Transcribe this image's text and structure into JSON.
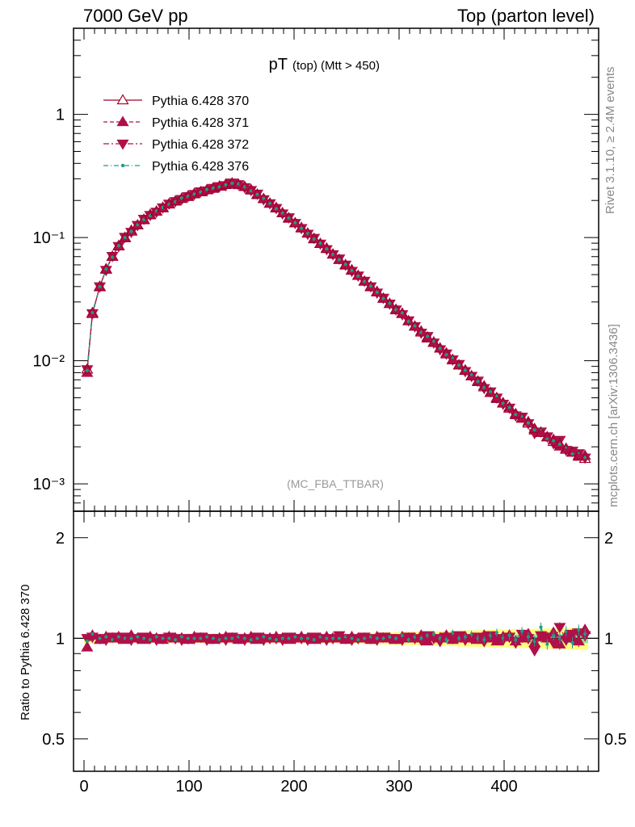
{
  "header": {
    "left": "7000 GeV pp",
    "right": "Top (parton level)"
  },
  "plot_title_main": "pT",
  "plot_title_sub": "(top) (Mtt > 450)",
  "watermark": "(MC_FBA_TTBAR)",
  "side_text_top": "Rivet 3.1.10, ≥ 2.4M events",
  "side_text_bottom": "mcplots.cern.ch [arXiv:1306.3436]",
  "ratio_ylabel": "Ratio to Pythia 6.428 370",
  "colors": {
    "series370": "#a00028",
    "series371": "#b0104a",
    "series372": "#b0104a",
    "series376": "#1a9e8a",
    "band_yellow": "#ffff80",
    "band_green": "#90e890"
  },
  "chart_data": [
    {
      "type": "line",
      "panel": "main",
      "yscale": "log",
      "xlim": [
        -10,
        490
      ],
      "ylim": [
        0.0006,
        5
      ],
      "y_ticks": [
        {
          "value": 1,
          "label": "1"
        },
        {
          "value": 0.1,
          "label": "10⁻¹"
        },
        {
          "value": 0.01,
          "label": "10⁻²"
        },
        {
          "value": 0.001,
          "label": "10⁻³"
        }
      ],
      "x_ticks": [
        0,
        100,
        200,
        300,
        400
      ],
      "x_tick_labels": [
        "0",
        "100",
        "200",
        "300",
        "400"
      ],
      "legend_position": "top-left",
      "series": [
        {
          "name": "Pythia 6.428 370",
          "marker": "open-triangle-up",
          "line": "solid",
          "color": "#a00028"
        },
        {
          "name": "Pythia 6.428 371",
          "marker": "filled-triangle-up",
          "line": "dashed",
          "color": "#b0104a"
        },
        {
          "name": "Pythia 6.428 372",
          "marker": "filled-triangle-down",
          "line": "dash-dot",
          "color": "#b0104a"
        },
        {
          "name": "Pythia 6.428 376",
          "marker": "dot",
          "line": "dash-dot",
          "color": "#1a9e8a"
        }
      ],
      "x": [
        3,
        8,
        15,
        21,
        27,
        33,
        39,
        45,
        51,
        57,
        63,
        69,
        75,
        81,
        87,
        93,
        99,
        105,
        111,
        117,
        123,
        129,
        135,
        141,
        147,
        153,
        159,
        165,
        171,
        177,
        183,
        189,
        195,
        201,
        207,
        213,
        219,
        225,
        231,
        237,
        243,
        249,
        255,
        261,
        267,
        273,
        279,
        285,
        291,
        297,
        303,
        309,
        315,
        321,
        327,
        333,
        339,
        345,
        351,
        357,
        363,
        369,
        375,
        381,
        387,
        393,
        399,
        405,
        411,
        417,
        423,
        429,
        435,
        441,
        447,
        453,
        459,
        465,
        471,
        477
      ],
      "y": [
        0.0085,
        0.024,
        0.04,
        0.055,
        0.07,
        0.085,
        0.1,
        0.112,
        0.126,
        0.14,
        0.152,
        0.163,
        0.175,
        0.186,
        0.197,
        0.207,
        0.216,
        0.225,
        0.234,
        0.243,
        0.252,
        0.26,
        0.268,
        0.276,
        0.27,
        0.258,
        0.242,
        0.224,
        0.206,
        0.189,
        0.173,
        0.158,
        0.144,
        0.131,
        0.119,
        0.108,
        0.098,
        0.089,
        0.081,
        0.073,
        0.066,
        0.06,
        0.054,
        0.049,
        0.044,
        0.04,
        0.036,
        0.032,
        0.029,
        0.026,
        0.024,
        0.021,
        0.019,
        0.017,
        0.0155,
        0.014,
        0.0126,
        0.0113,
        0.0102,
        0.0092,
        0.0083,
        0.0075,
        0.0068,
        0.0061,
        0.0055,
        0.005,
        0.0045,
        0.0041,
        0.0037,
        0.0034,
        0.0031,
        0.0028,
        0.0026,
        0.0024,
        0.0022,
        0.0021,
        0.0019,
        0.0018,
        0.0017,
        0.0016
      ]
    },
    {
      "type": "line",
      "panel": "ratio",
      "yscale": "log",
      "xlim": [
        -10,
        490
      ],
      "ylim": [
        0.4,
        2.4
      ],
      "y_ticks": [
        {
          "value": 2,
          "label": "2"
        },
        {
          "value": 1,
          "label": "1"
        },
        {
          "value": 0.5,
          "label": "0.5"
        }
      ],
      "x_ticks": [
        0,
        100,
        200,
        300,
        400
      ],
      "x_tick_labels": [
        "0",
        "100",
        "200",
        "300",
        "400"
      ],
      "series": [
        {
          "name": "Pythia 6.428 371",
          "values": [
            0.94,
            1.02,
            0.99,
            1.01,
            1.0,
            1.01,
            0.99,
            1.02,
            1.0,
            0.99,
            1.01,
            1.0,
            0.99,
            1.01,
            1.0,
            1.0,
            0.99,
            1.01,
            1.0,
            1.0,
            0.99,
            1.0,
            1.01,
            1.0,
            0.99,
            1.0,
            1.01,
            0.99,
            1.0,
            1.0,
            1.01,
            1.0,
            0.99,
            1.0,
            1.01,
            1.0,
            0.99,
            1.0,
            1.01,
            1.0,
            1.0,
            0.99,
            1.01,
            1.0,
            1.0,
            0.99,
            1.01,
            1.0,
            1.0,
            0.99,
            1.01,
            1.0,
            1.0,
            1.02,
            0.98,
            1.01,
            1.0,
            1.02,
            0.99,
            1.0,
            1.01,
            1.0,
            0.99,
            1.02,
            1.0,
            0.98,
            1.01,
            1.02,
            0.98,
            1.0,
            1.03,
            0.97,
            1.01,
            1.0,
            1.04,
            0.96,
            1.02,
            1.0,
            0.98,
            1.06
          ]
        },
        {
          "name": "Pythia 6.428 372",
          "values": [
            1.0,
            1.01,
            1.0,
            0.99,
            1.01,
            1.0,
            1.01,
            0.99,
            1.0,
            1.01,
            1.0,
            0.99,
            1.0,
            1.01,
            1.0,
            0.99,
            1.0,
            1.0,
            1.01,
            0.99,
            1.0,
            1.0,
            0.99,
            1.01,
            1.0,
            0.99,
            1.0,
            1.01,
            0.99,
            1.0,
            1.0,
            0.99,
            1.01,
            1.0,
            1.0,
            0.99,
            1.01,
            1.0,
            0.99,
            1.0,
            1.02,
            1.0,
            0.99,
            1.0,
            1.01,
            1.0,
            0.99,
            1.01,
            1.0,
            1.0,
            0.99,
            1.01,
            1.0,
            0.99,
            1.02,
            1.0,
            0.98,
            1.01,
            1.0,
            1.02,
            0.99,
            1.0,
            1.01,
            0.98,
            1.02,
            1.0,
            0.99,
            1.01,
            0.97,
            1.03,
            1.0,
            0.92,
            1.02,
            1.01,
            0.97,
            1.08,
            0.99,
            1.03,
            1.04,
            1.02
          ]
        },
        {
          "name": "Pythia 6.428 376",
          "values": [
            0.98,
            1.03,
            1.0,
            1.01,
            0.99,
            1.01,
            1.0,
            1.0,
            1.01,
            1.0,
            0.99,
            1.01,
            1.0,
            1.0,
            0.99,
            1.01,
            1.0,
            1.0,
            1.0,
            1.01,
            1.0,
            0.99,
            1.0,
            1.0,
            1.01,
            1.0,
            0.99,
            1.0,
            1.01,
            1.0,
            0.99,
            1.0,
            1.0,
            1.01,
            1.0,
            1.0,
            0.99,
            1.01,
            1.0,
            1.0,
            1.0,
            1.01,
            1.0,
            0.99,
            1.0,
            1.01,
            1.0,
            1.0,
            1.01,
            1.0,
            1.02,
            0.99,
            1.01,
            1.0,
            1.02,
            1.03,
            1.0,
            0.99,
            1.04,
            1.0,
            1.01,
            1.03,
            1.0,
            0.99,
            1.02,
            1.04,
            1.0,
            1.02,
            0.99,
            1.05,
            1.01,
            0.98,
            1.08,
            0.96,
            1.02,
            1.0,
            1.05,
            0.97,
            1.06,
            1.03
          ]
        }
      ],
      "reference": 1
    }
  ]
}
